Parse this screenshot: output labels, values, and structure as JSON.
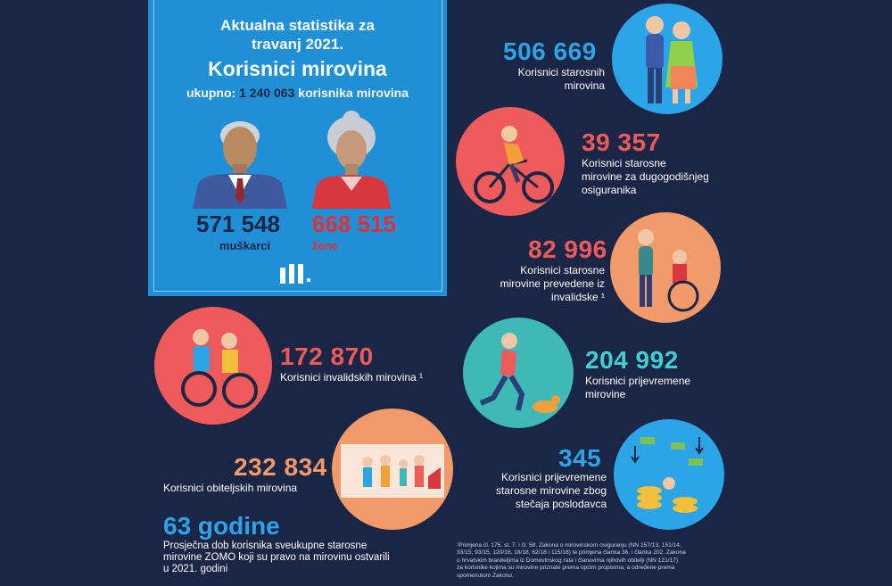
{
  "summary": {
    "heading_line1": "Aktualna statistika za",
    "heading_line2": "travanj 2021.",
    "title": "Korisnici mirovina",
    "total_prefix": "ukupno:",
    "total_value": "1 240 063",
    "total_suffix": "korisnika mirovina",
    "men_value": "571 548",
    "men_label": "muškarci",
    "women_value": "668 515",
    "women_label": "žene",
    "logo_text": "m"
  },
  "stats": [
    {
      "value": "506 669",
      "label_lines": [
        "Korisnici starosnih",
        "mirovina"
      ],
      "icon": "elderly-couple-icon"
    },
    {
      "value": "39 357",
      "label_lines": [
        "Korisnici starosne",
        "mirovine za dugogodišnjeg",
        "osiguranika"
      ],
      "icon": "senior-cyclist-icon"
    },
    {
      "value": "82 996",
      "label_lines": [
        "Korisnici starosne",
        "mirovine prevedene iz",
        "invalidske ¹"
      ],
      "icon": "wheelchair-caregiver-icon"
    },
    {
      "value": "172 870",
      "label_lines": [
        "Korisnici invalidskih mirovina ¹"
      ],
      "icon": "wheelchair-couple-icon"
    },
    {
      "value": "204 992",
      "label_lines": [
        "Korisnici prijevremene",
        "mirovine"
      ],
      "icon": "runner-with-dog-icon"
    },
    {
      "value": "232 834",
      "label_lines": [
        "Korisnici obiteljskih mirovina"
      ],
      "icon": "family-icon"
    },
    {
      "value": "345",
      "label_lines": [
        "Korisnici prijevremene",
        "starosne mirovine zbog",
        "stečaja poslodavca"
      ],
      "icon": "falling-money-icon"
    }
  ],
  "age": {
    "value": "63 godine",
    "lines": [
      "Prosječna dob korisnika sveukupne starosne",
      "mirovine ZOMO koji su pravo na mirovinu ostvarili",
      "u 2021. godini"
    ]
  },
  "footnote": {
    "lines": [
      "¹Primjena čl. 175. st. 7. i čl. 58. Zakona o mirovinskom osiguranju (NN 157/13, 151/14,",
      "33/15, 93/15, 120/16, 18/18, 62/18 i 115/18) te primjena članka 36. i članka 202.  Zakona",
      "o hrvatskim braniteljima iz Domovinskog rata i članovima njihovih obitelji (NN 121/17)",
      "za korisnike kojima su mirovine priznate prema općim propisima, a određene prema",
      "spomenutom Zakonu."
    ]
  },
  "colors": {
    "background": "#1b2646",
    "summary_box": "#1f8fd6",
    "men_value": "#1b2646",
    "women_value": "#e0303a"
  }
}
